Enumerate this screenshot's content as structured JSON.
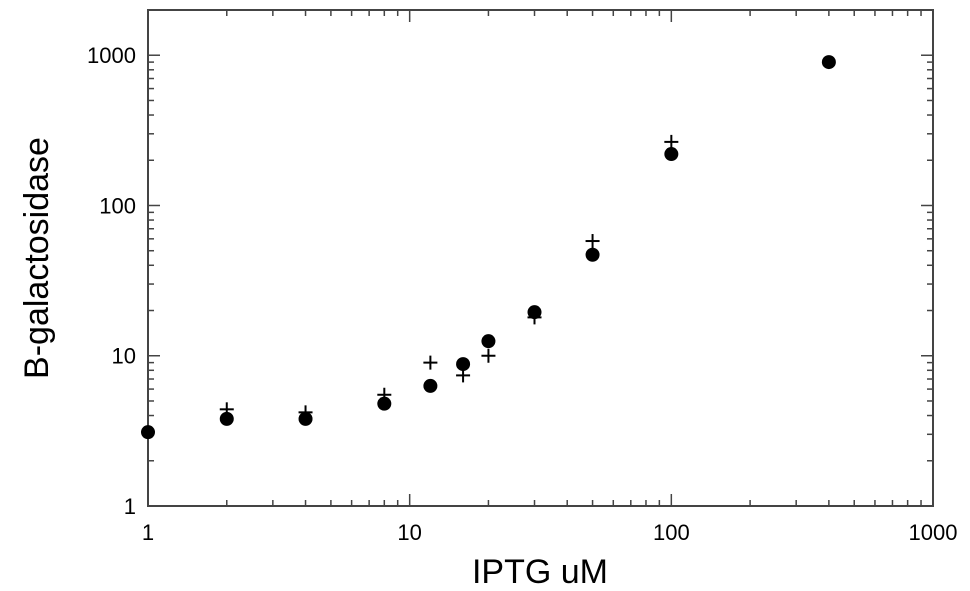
{
  "chart_data": {
    "type": "scatter",
    "title": "",
    "xlabel": "IPTG uM",
    "ylabel": "B-galactosidase",
    "xscale": "log",
    "yscale": "log",
    "xlim": [
      1,
      1000
    ],
    "ylim": [
      1,
      2000
    ],
    "grid": false,
    "legend": "none",
    "x_ticks": [
      "1",
      "10",
      "100",
      "1000"
    ],
    "y_ticks": [
      "1",
      "10",
      "100",
      "1000"
    ],
    "series": [
      {
        "marker": "filled-circle",
        "color": "#000000",
        "x": [
          1,
          2,
          4,
          8,
          12,
          16,
          20,
          30,
          50,
          100,
          400
        ],
        "y": [
          3.1,
          3.8,
          3.8,
          4.8,
          6.3,
          8.8,
          12.5,
          19.5,
          47,
          220,
          900
        ]
      },
      {
        "marker": "plus",
        "color": "#000000",
        "x": [
          2,
          4,
          8,
          12,
          16,
          20,
          30,
          50,
          100
        ],
        "y": [
          4.4,
          4.2,
          5.5,
          9,
          7.4,
          10,
          18,
          58,
          265
        ]
      }
    ]
  }
}
